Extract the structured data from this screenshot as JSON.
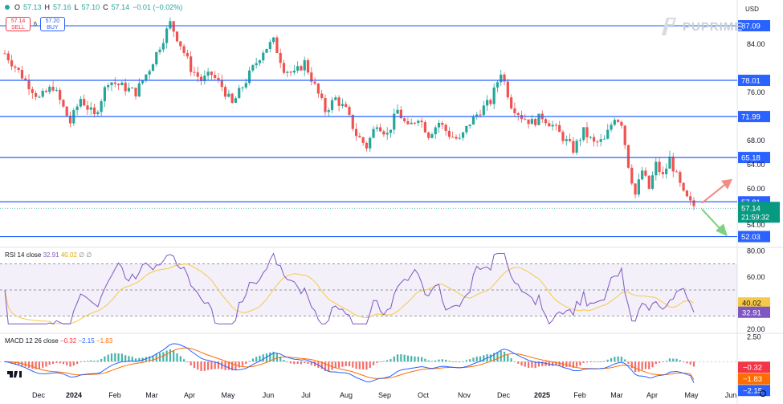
{
  "header": {
    "o_label": "O",
    "o_value": "57.13",
    "h_label": "H",
    "h_value": "57.16",
    "l_label": "L",
    "l_value": "57.10",
    "c_label": "C",
    "c_value": "57.14",
    "change": "−0.01 (−0.02%)",
    "currency": "USD"
  },
  "trade": {
    "sell_price": "57.14",
    "sell_label": "SELL",
    "buy_price": "57.20",
    "buy_label": "BUY",
    "spread": "6"
  },
  "brand": {
    "name": "PUPRIME"
  },
  "chart_data": [
    {
      "type": "candlestick",
      "title": "",
      "x_ticks": [
        "Dec",
        "2024",
        "Feb",
        "Mar",
        "Apr",
        "May",
        "Jun",
        "Jul",
        "Aug",
        "Sep",
        "Oct",
        "Nov",
        "Dec",
        "2025",
        "Feb",
        "Mar",
        "Apr",
        "May",
        "Jun"
      ],
      "y_ticks": [
        "84.00",
        "76.00",
        "68.00",
        "64.00",
        "60.00",
        "54.00"
      ],
      "ylim": [
        50.5,
        89.5
      ],
      "last_price": "57.14",
      "countdown": "21:59:32",
      "levels": [
        {
          "value": 87.09,
          "label": "87.09"
        },
        {
          "value": 78.01,
          "label": "78.01"
        },
        {
          "value": 71.99,
          "label": "71.99"
        },
        {
          "value": 65.18,
          "label": "65.18"
        },
        {
          "value": 57.81,
          "label": "57.81"
        },
        {
          "value": 52.03,
          "label": "52.03"
        }
      ],
      "path_points": [
        [
          0,
          82.5
        ],
        [
          6,
          78
        ],
        [
          10,
          75
        ],
        [
          14,
          77
        ],
        [
          19,
          71
        ],
        [
          22,
          75
        ],
        [
          26,
          72
        ],
        [
          30,
          78
        ],
        [
          34,
          77
        ],
        [
          38,
          76
        ],
        [
          42,
          80
        ],
        [
          46,
          85
        ],
        [
          48,
          87.5
        ],
        [
          51,
          84
        ],
        [
          54,
          80
        ],
        [
          57,
          78
        ],
        [
          60,
          79
        ],
        [
          63,
          77
        ],
        [
          66,
          74
        ],
        [
          69,
          77
        ],
        [
          72,
          80
        ],
        [
          75,
          83
        ],
        [
          78,
          84.5
        ],
        [
          81,
          80
        ],
        [
          84,
          79
        ],
        [
          87,
          81
        ],
        [
          90,
          77
        ],
        [
          93,
          73
        ],
        [
          96,
          75
        ],
        [
          99,
          73
        ],
        [
          102,
          69
        ],
        [
          105,
          67
        ],
        [
          108,
          71
        ],
        [
          111,
          69
        ],
        [
          114,
          73
        ],
        [
          117,
          70
        ],
        [
          120,
          72
        ],
        [
          123,
          69
        ],
        [
          126,
          71
        ],
        [
          129,
          69
        ],
        [
          132,
          68
        ],
        [
          135,
          71
        ],
        [
          138,
          73
        ],
        [
          141,
          74.5
        ],
        [
          144,
          79.5
        ],
        [
          147,
          74
        ],
        [
          150,
          72
        ],
        [
          153,
          71
        ],
        [
          156,
          72
        ],
        [
          159,
          70.5
        ],
        [
          162,
          68.5
        ],
        [
          165,
          66.5
        ],
        [
          168,
          69.5
        ],
        [
          171,
          67.5
        ],
        [
          174,
          68
        ],
        [
          177,
          72
        ],
        [
          179,
          71
        ],
        [
          181,
          64
        ],
        [
          183,
          59
        ],
        [
          185,
          63
        ],
        [
          187,
          60
        ],
        [
          189,
          64
        ],
        [
          191,
          62
        ],
        [
          193,
          65
        ],
        [
          195,
          62
        ],
        [
          197,
          59
        ],
        [
          199,
          57.5
        ],
        [
          200,
          57.14
        ]
      ],
      "forecast_up_color": "#f28b82",
      "forecast_down_color": "#7dd07d"
    },
    {
      "type": "line",
      "title": "RSI 14 close",
      "values_label": [
        "32.91",
        "40.02"
      ],
      "series": [
        {
          "name": "RSI",
          "color": "#7e57c2",
          "last": 32.91
        },
        {
          "name": "MA",
          "color": "#f7c948",
          "last": 40.02
        }
      ],
      "y_ticks": [
        "80.00",
        "60.00",
        "40.00",
        "20.00"
      ],
      "ylim": [
        18,
        82
      ],
      "bands": [
        70,
        50,
        30
      ]
    },
    {
      "type": "histogram",
      "title": "MACD 12 26 close",
      "values_label": [
        "−0.32",
        "−2.15",
        "−1.83"
      ],
      "series": [
        {
          "name": "histogram",
          "last": -0.32
        },
        {
          "name": "MACD",
          "color": "#2962ff",
          "last": -2.15
        },
        {
          "name": "signal",
          "color": "#ff6d00",
          "last": -1.83
        }
      ],
      "y_ticks": [
        "2.50"
      ],
      "ylim": [
        -2.6,
        2.8
      ]
    }
  ]
}
